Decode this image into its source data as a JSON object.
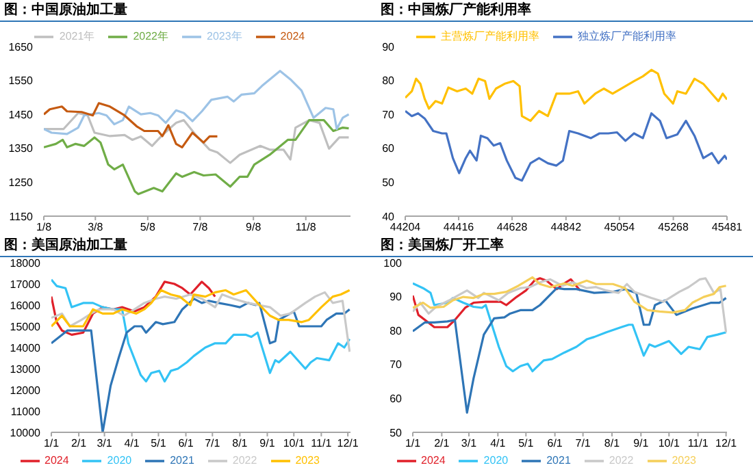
{
  "chart_data": [
    {
      "type": "line",
      "title": "图：中国原油加工量",
      "legend": "top",
      "xlim": [
        "--01-08",
        "--12-30"
      ],
      "xticks": [
        {
          "value": "--01-08",
          "label": "1/8"
        },
        {
          "value": "--03-08",
          "label": "3/8"
        },
        {
          "value": "--05-08",
          "label": "5/8"
        },
        {
          "value": "--07-08",
          "label": "7/8"
        },
        {
          "value": "--09-08",
          "label": "9/8"
        },
        {
          "value": "--11-08",
          "label": "11/8"
        }
      ],
      "ylim": [
        1150,
        1650
      ],
      "yticks": [
        1150,
        1250,
        1350,
        1450,
        1550,
        1650
      ],
      "series": [
        {
          "name": "2021年",
          "color": "#bfbfbf",
          "x": [
            "--01-08",
            "--01-31",
            "--02-17",
            "--02-28",
            "--03-07",
            "--03-25",
            "--04-11",
            "--04-20",
            "--04-30",
            "--05-13",
            "--05-25",
            "--06-10",
            "--06-19",
            "--07-03",
            "--07-19",
            "--07-28",
            "--08-12",
            "--08-23",
            "--09-16",
            "--09-27",
            "--10-13",
            "--10-21",
            "--10-27",
            "--11-12",
            "--11-24",
            "--12-05",
            "--12-17",
            "--12-28"
          ],
          "values": [
            1407,
            1407,
            1454,
            1447,
            1396,
            1386,
            1389,
            1375,
            1385,
            1357,
            1389,
            1425,
            1433,
            1389,
            1346,
            1338,
            1307,
            1331,
            1357,
            1346,
            1346,
            1317,
            1411,
            1433,
            1425,
            1349,
            1382,
            1382
          ]
        },
        {
          "name": "2022年",
          "color": "#70ad47",
          "x": [
            "--01-08",
            "--01-22",
            "--01-30",
            "--02-04",
            "--02-14",
            "--02-24",
            "--03-07",
            "--03-14",
            "--03-23",
            "--03-30",
            "--04-09",
            "--04-23",
            "--04-27",
            "--05-15",
            "--05-25",
            "--06-10",
            "--06-17",
            "--07-01",
            "--07-12",
            "--07-26",
            "--08-12",
            "--08-23",
            "--09-01",
            "--09-09",
            "--09-27",
            "--10-18",
            "--10-27",
            "--11-12",
            "--11-24",
            "--11-29",
            "--12-10",
            "--12-21",
            "--12-28"
          ],
          "values": [
            1353,
            1363,
            1375,
            1353,
            1363,
            1357,
            1382,
            1367,
            1302,
            1288,
            1302,
            1223,
            1215,
            1233,
            1223,
            1276,
            1266,
            1280,
            1270,
            1273,
            1237,
            1266,
            1266,
            1302,
            1331,
            1375,
            1375,
            1433,
            1433,
            1433,
            1401,
            1411,
            1409
          ]
        },
        {
          "name": "2023年",
          "color": "#9dc3e6",
          "x": [
            "--01-08",
            "--01-17",
            "--02-04",
            "--02-17",
            "--02-24",
            "--03-12",
            "--03-21",
            "--03-30",
            "--04-09",
            "--04-16",
            "--04-30",
            "--05-11",
            "--05-20",
            "--05-29",
            "--06-10",
            "--06-19",
            "--06-29",
            "--07-10",
            "--07-21",
            "--08-09",
            "--08-16",
            "--08-25",
            "--09-09",
            "--09-18",
            "--10-09",
            "--10-22",
            "--11-03",
            "--11-17",
            "--12-01",
            "--12-10",
            "--12-14",
            "--12-21",
            "--12-28"
          ],
          "values": [
            1407,
            1396,
            1392,
            1411,
            1447,
            1454,
            1447,
            1421,
            1433,
            1473,
            1450,
            1454,
            1447,
            1425,
            1462,
            1454,
            1430,
            1459,
            1493,
            1502,
            1488,
            1508,
            1512,
            1534,
            1578,
            1551,
            1520,
            1440,
            1469,
            1465,
            1407,
            1440,
            1450
          ]
        },
        {
          "name": "2024",
          "color": "#c55a11",
          "x": [
            "--01-08",
            "--01-15",
            "--01-29",
            "--02-04",
            "--02-21",
            "--03-05",
            "--03-12",
            "--03-25",
            "--04-11",
            "--04-25",
            "--05-04",
            "--05-20",
            "--05-25",
            "--06-01",
            "--06-10",
            "--06-17",
            "--06-29",
            "--07-12",
            "--07-19",
            "--07-28"
          ],
          "values": [
            1450,
            1465,
            1473,
            1459,
            1457,
            1447,
            1483,
            1473,
            1447,
            1415,
            1401,
            1401,
            1386,
            1418,
            1363,
            1353,
            1396,
            1367,
            1385,
            1385
          ]
        }
      ]
    },
    {
      "type": "line",
      "title": "图：中国炼厂产能利用率",
      "legend": "top",
      "xlim": [
        44204,
        45481
      ],
      "xticks": [
        44204,
        44416,
        44628,
        44842,
        45054,
        45268,
        45481
      ],
      "ylim": [
        40,
        90
      ],
      "yticks": [
        40,
        50,
        60,
        70,
        80,
        90
      ],
      "series": [
        {
          "name": "主营炼厂产能利用率",
          "color": "#ffc000",
          "x": [
            44204,
            44230,
            44247,
            44264,
            44281,
            44298,
            44324,
            44350,
            44375,
            44410,
            44444,
            44470,
            44495,
            44521,
            44538,
            44564,
            44598,
            44633,
            44658,
            44667,
            44701,
            44735,
            44770,
            44804,
            44855,
            44890,
            44915,
            44958,
            44992,
            45027,
            45061,
            45112,
            45147,
            45181,
            45207,
            45232,
            45267,
            45284,
            45318,
            45352,
            45387,
            45421,
            45447,
            45464,
            45481
          ],
          "values": [
            74.9,
            76.8,
            80.5,
            79.0,
            74.6,
            71.7,
            73.9,
            73.2,
            77.9,
            76.8,
            77.6,
            76.1,
            80.5,
            79.8,
            74.6,
            77.6,
            79.0,
            79.8,
            78.3,
            69.5,
            68.1,
            71.0,
            69.5,
            76.1,
            76.1,
            76.8,
            73.2,
            76.1,
            77.6,
            76.1,
            77.6,
            79.8,
            81.2,
            83.1,
            82.0,
            76.1,
            73.2,
            76.8,
            76.1,
            80.5,
            79.0,
            76.1,
            73.9,
            76.1,
            74.4
          ]
        },
        {
          "name": "独立炼厂产能利用率",
          "color": "#4472c4",
          "x": [
            44204,
            44230,
            44255,
            44281,
            44315,
            44350,
            44367,
            44393,
            44418,
            44444,
            44461,
            44487,
            44504,
            44530,
            44555,
            44581,
            44607,
            44641,
            44667,
            44701,
            44735,
            44770,
            44804,
            44830,
            44855,
            44890,
            44941,
            44975,
            45010,
            45044,
            45078,
            45112,
            45147,
            45181,
            45215,
            45241,
            45284,
            45318,
            45352,
            45387,
            45421,
            45447,
            45472,
            45481
          ],
          "values": [
            71.0,
            69.5,
            70.3,
            68.8,
            65.1,
            64.4,
            64.4,
            57.1,
            52.7,
            57.1,
            59.3,
            56.4,
            63.7,
            63.0,
            60.8,
            61.5,
            56.4,
            51.3,
            50.5,
            55.6,
            57.1,
            55.6,
            54.9,
            56.4,
            65.1,
            64.4,
            63.0,
            64.4,
            64.4,
            64.7,
            62.2,
            64.4,
            63.0,
            70.3,
            68.1,
            63.0,
            64.1,
            68.1,
            63.7,
            57.1,
            58.6,
            55.6,
            57.8,
            56.7
          ]
        }
      ]
    },
    {
      "type": "line",
      "title": "图：美国原油加工量",
      "legend": "bottom",
      "xlim": [
        "--01-01",
        "--12-04"
      ],
      "xticks": [
        {
          "value": "--01-01",
          "label": "1/1"
        },
        {
          "value": "--02-01",
          "label": "2/1"
        },
        {
          "value": "--03-01",
          "label": "3/1"
        },
        {
          "value": "--04-01",
          "label": "4/1"
        },
        {
          "value": "--05-01",
          "label": "5/1"
        },
        {
          "value": "--06-01",
          "label": "6/1"
        },
        {
          "value": "--07-01",
          "label": "7/1"
        },
        {
          "value": "--08-01",
          "label": "8/1"
        },
        {
          "value": "--09-01",
          "label": "9/1"
        },
        {
          "value": "--10-01",
          "label": "10/1"
        },
        {
          "value": "--11-01",
          "label": "11/1"
        },
        {
          "value": "--12-01",
          "label": "12/1"
        }
      ],
      "ylim": [
        10000,
        18000
      ],
      "yticks": [
        10000,
        11000,
        12000,
        13000,
        14000,
        15000,
        16000,
        17000,
        18000
      ],
      "series": [
        {
          "name": "2024",
          "color": "#e0202a",
          "x": [
            "--01-01",
            "--01-07",
            "--01-13",
            "--01-24",
            "--02-06",
            "--02-17",
            "--02-28",
            "--03-11",
            "--03-21",
            "--04-04",
            "--04-15",
            "--04-28",
            "--05-08",
            "--05-19",
            "--05-28",
            "--06-06",
            "--06-19",
            "--06-27",
            "--07-04"
          ],
          "values": [
            16400,
            15200,
            14800,
            14600,
            14700,
            15600,
            15900,
            15800,
            15900,
            15700,
            15900,
            16400,
            17100,
            17000,
            16800,
            16500,
            17100,
            16800,
            16400
          ]
        },
        {
          "name": "2020",
          "color": "#33c3f5",
          "x": [
            "--01-01",
            "--01-07",
            "--01-17",
            "--01-24",
            "--02-06",
            "--02-17",
            "--02-28",
            "--03-11",
            "--03-21",
            "--03-28",
            "--04-11",
            "--04-17",
            "--04-23",
            "--05-02",
            "--05-08",
            "--05-15",
            "--05-23",
            "--06-02",
            "--06-10",
            "--06-23",
            "--07-04",
            "--07-16",
            "--07-25",
            "--08-08",
            "--08-14",
            "--08-21",
            "--09-04",
            "--09-10",
            "--09-14",
            "--09-27",
            "--10-14",
            "--10-20",
            "--10-27",
            "--11-10",
            "--11-20",
            "--11-27",
            "--12-03"
          ],
          "values": [
            17200,
            16900,
            16800,
            15900,
            16100,
            16100,
            15900,
            15800,
            15800,
            14200,
            12700,
            12400,
            12800,
            12900,
            12400,
            12900,
            13000,
            13300,
            13600,
            14000,
            14200,
            14200,
            14600,
            14600,
            14500,
            14700,
            12800,
            13400,
            13300,
            13800,
            13000,
            13300,
            13500,
            13400,
            14200,
            14000,
            14400
          ]
        },
        {
          "name": "2021",
          "color": "#2e75b6",
          "x": [
            "--01-01",
            "--01-13",
            "--01-19",
            "--02-04",
            "--02-15",
            "--02-28",
            "--03-08",
            "--03-17",
            "--03-26",
            "--04-04",
            "--04-12",
            "--04-17",
            "--04-28",
            "--05-06",
            "--05-19",
            "--05-28",
            "--06-10",
            "--06-19",
            "--06-27",
            "--07-08",
            "--07-21",
            "--08-01",
            "--08-10",
            "--08-19",
            "--08-23",
            "--09-04",
            "--09-10",
            "--09-14",
            "--10-01",
            "--10-07",
            "--10-18",
            "--11-01",
            "--11-07",
            "--11-18",
            "--11-27",
            "--12-03"
          ],
          "values": [
            14200,
            14600,
            14800,
            14800,
            14800,
            10000,
            12200,
            13500,
            14700,
            15000,
            15000,
            14700,
            15200,
            15100,
            15200,
            15800,
            16300,
            16100,
            16200,
            16100,
            16000,
            15900,
            16100,
            16000,
            16100,
            14200,
            14300,
            15300,
            15700,
            15000,
            15000,
            15000,
            15300,
            15600,
            15600,
            15800
          ]
        },
        {
          "name": "2022",
          "color": "#c9c9c9",
          "x": [
            "--01-01",
            "--01-13",
            "--01-22",
            "--02-04",
            "--02-15",
            "--02-24",
            "--03-11",
            "--03-23",
            "--04-04",
            "--04-15",
            "--04-28",
            "--05-08",
            "--05-21",
            "--06-06",
            "--06-19",
            "--07-04",
            "--07-12",
            "--07-25",
            "--08-10",
            "--09-04",
            "--09-16",
            "--09-27",
            "--10-14",
            "--10-25",
            "--11-05",
            "--11-14",
            "--11-25",
            "--12-03"
          ],
          "values": [
            15400,
            15600,
            15000,
            15300,
            15600,
            15800,
            15800,
            15500,
            15800,
            16100,
            16300,
            16400,
            16300,
            16500,
            16300,
            15900,
            16500,
            16300,
            16100,
            15900,
            15500,
            15600,
            16100,
            16400,
            16600,
            16100,
            16200,
            13800
          ]
        },
        {
          "name": "2023",
          "color": "#ffc000",
          "x": [
            "--01-01",
            "--01-13",
            "--01-22",
            "--02-06",
            "--02-17",
            "--02-28",
            "--03-11",
            "--03-21",
            "--04-06",
            "--04-15",
            "--04-23",
            "--05-04",
            "--05-15",
            "--05-25",
            "--06-06",
            "--06-10",
            "--06-23",
            "--07-04",
            "--07-16",
            "--07-25",
            "--08-08",
            "--08-21",
            "--09-04",
            "--09-14",
            "--09-25",
            "--10-10",
            "--10-18",
            "--11-01",
            "--11-14",
            "--11-23",
            "--12-03"
          ],
          "values": [
            15000,
            15500,
            15000,
            15000,
            15800,
            15600,
            15600,
            15800,
            15600,
            15800,
            16100,
            16700,
            16500,
            16400,
            16000,
            16500,
            16400,
            16600,
            16700,
            16500,
            16700,
            16100,
            15500,
            15300,
            15300,
            15200,
            15300,
            15900,
            16400,
            16500,
            16700
          ]
        }
      ]
    },
    {
      "type": "line",
      "title": "图：美国炼厂开工率",
      "legend": "bottom",
      "xlim": [
        "--01-01",
        "--12-02"
      ],
      "xticks": [
        {
          "value": "--01-01",
          "label": "1/1"
        },
        {
          "value": "--02-01",
          "label": "2/1"
        },
        {
          "value": "--03-01",
          "label": "3/1"
        },
        {
          "value": "--04-01",
          "label": "4/1"
        },
        {
          "value": "--05-01",
          "label": "5/1"
        },
        {
          "value": "--06-01",
          "label": "6/1"
        },
        {
          "value": "--07-01",
          "label": "7/1"
        },
        {
          "value": "--08-01",
          "label": "8/1"
        },
        {
          "value": "--09-01",
          "label": "9/1"
        },
        {
          "value": "--10-01",
          "label": "10/1"
        },
        {
          "value": "--11-01",
          "label": "11/1"
        },
        {
          "value": "--12-01",
          "label": "12/1"
        }
      ],
      "ylim": [
        50,
        100
      ],
      "yticks": [
        50,
        60,
        70,
        80,
        90,
        100
      ],
      "series": [
        {
          "name": "2024",
          "color": "#e0202a",
          "x": [
            "--01-01",
            "--01-07",
            "--01-16",
            "--01-24",
            "--02-07",
            "--02-15",
            "--02-26",
            "--03-06",
            "--03-19",
            "--04-04",
            "--04-10",
            "--04-21",
            "--05-01",
            "--05-10",
            "--05-16",
            "--05-23",
            "--06-03",
            "--06-11",
            "--06-18",
            "--06-28"
          ],
          "values": [
            90.3,
            84.6,
            82.7,
            81.0,
            81.0,
            83.1,
            86.7,
            88.2,
            88.5,
            88.5,
            87.5,
            89.9,
            91.8,
            94.7,
            95.4,
            94.7,
            92.2,
            93.9,
            95.1,
            91.8
          ]
        },
        {
          "name": "2020",
          "color": "#33c3f5",
          "x": [
            "--01-01",
            "--01-12",
            "--01-20",
            "--01-24",
            "--02-07",
            "--02-13",
            "--02-24",
            "--03-06",
            "--03-15",
            "--03-19",
            "--04-02",
            "--04-10",
            "--04-17",
            "--04-25",
            "--05-03",
            "--05-08",
            "--05-20",
            "--05-29",
            "--06-11",
            "--06-24",
            "--07-05",
            "--07-13",
            "--07-26",
            "--08-11",
            "--08-19",
            "--08-23",
            "--09-04",
            "--09-10",
            "--09-16",
            "--10-01",
            "--10-14",
            "--10-22",
            "--11-03",
            "--11-11",
            "--11-22",
            "--12-01"
          ],
          "values": [
            93.9,
            92.5,
            91.1,
            87.5,
            88.2,
            89.6,
            88.2,
            87.0,
            86.7,
            87.5,
            75.2,
            69.5,
            68.0,
            69.5,
            70.2,
            68.0,
            71.2,
            71.6,
            73.5,
            75.2,
            77.4,
            78.1,
            79.5,
            81.0,
            81.7,
            81.7,
            72.6,
            75.9,
            75.2,
            76.9,
            73.1,
            75.2,
            74.5,
            78.1,
            78.8,
            79.5
          ]
        },
        {
          "name": "2021",
          "color": "#2e75b6",
          "x": [
            "--01-01",
            "--01-14",
            "--01-24",
            "--02-07",
            "--02-15",
            "--02-28",
            "--03-06",
            "--03-17",
            "--03-28",
            "--04-08",
            "--04-14",
            "--04-25",
            "--05-08",
            "--05-16",
            "--06-03",
            "--06-11",
            "--06-24",
            "--07-13",
            "--08-02",
            "--08-15",
            "--08-27",
            "--09-04",
            "--09-10",
            "--09-16",
            "--09-27",
            "--10-09",
            "--10-26",
            "--11-15",
            "--11-24",
            "--12-01"
          ],
          "values": [
            79.8,
            82.4,
            82.4,
            82.7,
            83.1,
            55.8,
            65.9,
            78.8,
            83.6,
            83.9,
            85.0,
            86.0,
            86.0,
            87.5,
            92.5,
            92.2,
            92.2,
            91.1,
            91.4,
            92.2,
            91.1,
            81.7,
            81.7,
            87.5,
            88.9,
            84.6,
            86.5,
            88.2,
            88.2,
            89.6
          ]
        },
        {
          "name": "2022",
          "color": "#c9c9c9",
          "x": [
            "--01-01",
            "--01-09",
            "--01-18",
            "--01-26",
            "--02-09",
            "--02-18",
            "--02-28",
            "--03-11",
            "--03-17",
            "--04-02",
            "--04-12",
            "--04-25",
            "--05-05",
            "--05-16",
            "--05-27",
            "--06-09",
            "--06-20",
            "--07-05",
            "--07-15",
            "--07-26",
            "--08-08",
            "--08-17",
            "--08-25",
            "--09-12",
            "--09-25",
            "--10-12",
            "--10-22",
            "--11-03",
            "--11-09",
            "--11-18",
            "--11-25",
            "--12-01"
          ],
          "values": [
            85.6,
            88.2,
            85.0,
            87.0,
            88.9,
            90.3,
            91.8,
            89.6,
            91.1,
            88.9,
            91.1,
            92.5,
            92.8,
            94.2,
            95.1,
            93.2,
            94.2,
            92.5,
            92.8,
            91.8,
            91.1,
            93.7,
            91.4,
            89.6,
            88.5,
            91.4,
            92.8,
            95.1,
            95.4,
            91.1,
            92.2,
            79.5
          ]
        },
        {
          "name": "2023",
          "color": "#f5cf5a",
          "x": [
            "--01-01",
            "--01-12",
            "--01-20",
            "--02-03",
            "--02-13",
            "--02-24",
            "--03-06",
            "--03-17",
            "--03-28",
            "--04-10",
            "--04-23",
            "--05-08",
            "--05-16",
            "--05-27",
            "--06-11",
            "--06-20",
            "--07-05",
            "--07-15",
            "--08-02",
            "--08-15",
            "--08-25",
            "--09-08",
            "--09-21",
            "--10-05",
            "--10-18",
            "--10-26",
            "--11-07",
            "--11-18",
            "--11-24",
            "--12-01"
          ],
          "values": [
            86.7,
            88.2,
            86.7,
            87.0,
            88.9,
            89.9,
            89.6,
            90.8,
            90.8,
            91.4,
            93.2,
            95.7,
            93.7,
            92.8,
            93.9,
            93.2,
            94.7,
            93.7,
            93.7,
            92.5,
            88.5,
            86.0,
            85.6,
            85.3,
            86.0,
            88.2,
            89.9,
            90.8,
            92.8,
            93.2
          ]
        }
      ]
    }
  ]
}
